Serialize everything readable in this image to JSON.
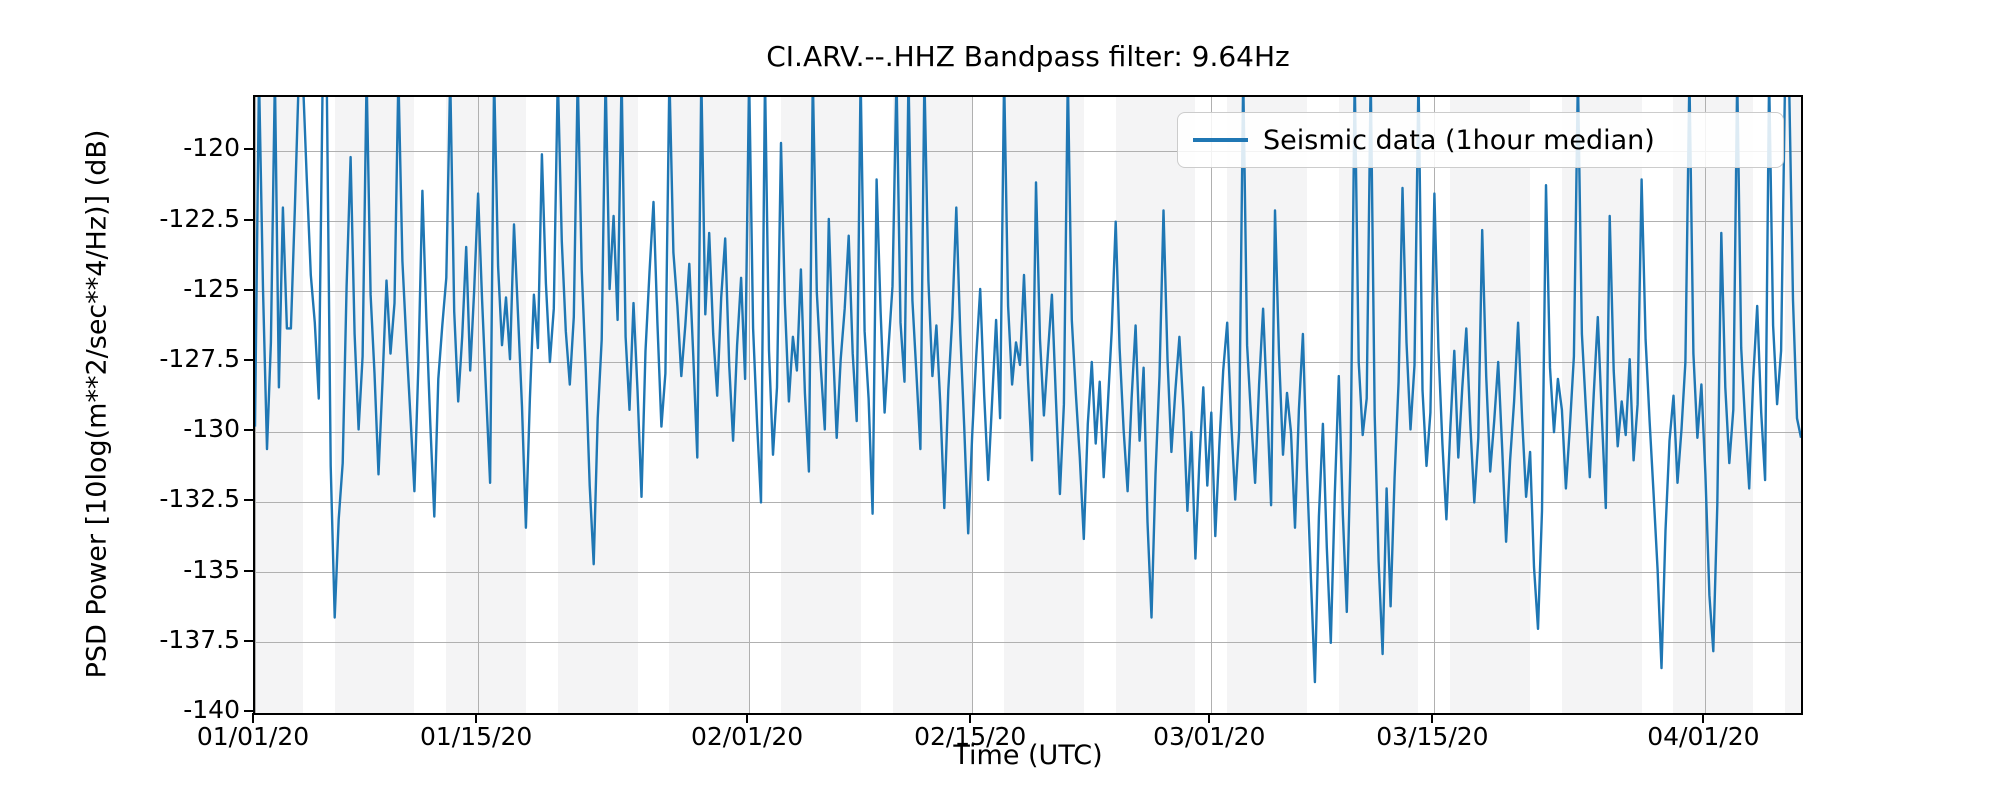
{
  "figure": {
    "title": "CI.ARV.--.HHZ Bandpass filter: 9.64Hz",
    "xlabel": "Time (UTC)",
    "ylabel": "PSD Power [10log(m**2/sec**4/Hz)] (dB)",
    "legend_label": "Seismic data (1hour median)"
  },
  "chart_data": {
    "type": "line",
    "title": "CI.ARV.--.HHZ Bandpass filter: 9.64Hz",
    "xlabel": "Time (UTC)",
    "ylabel": "PSD Power [10log(m**2/sec**4/Hz)] (dB)",
    "legend": [
      "Seismic data (1hour median)"
    ],
    "legend_position": "upper right",
    "grid": true,
    "line_color": "#1f77b4",
    "weekday_band_color": "#f4f4f5",
    "weekend_band_color": "#ffffff",
    "start_weekday_mon0": 2,
    "x_start_date": "01/01/20",
    "points_per_day": 4,
    "xlim_days": [
      0,
      97
    ],
    "ylim": [
      -140,
      -118.06
    ],
    "x_ticks": [
      {
        "label": "01/01/20",
        "day": 0
      },
      {
        "label": "01/15/20",
        "day": 14
      },
      {
        "label": "02/01/20",
        "day": 31
      },
      {
        "label": "02/15/20",
        "day": 45
      },
      {
        "label": "03/01/20",
        "day": 60
      },
      {
        "label": "03/15/20",
        "day": 74
      },
      {
        "label": "04/01/20",
        "day": 91
      }
    ],
    "y_ticks": [
      -120,
      -122.5,
      -125,
      -127.5,
      -130,
      -132.5,
      -135,
      -137.5,
      -140
    ],
    "values_db": [
      -129.8,
      -117.3,
      -124.9,
      -130.6,
      -126.8,
      -117.3,
      -128.4,
      -122.0,
      -126.3,
      -126.3,
      -122.1,
      -117.3,
      -117.3,
      -121.0,
      -124.4,
      -126.1,
      -128.8,
      -117.3,
      -117.3,
      -131.2,
      -136.6,
      -133.1,
      -131.1,
      -124.8,
      -120.2,
      -126.5,
      -129.9,
      -127.3,
      -117.3,
      -125.1,
      -127.9,
      -131.5,
      -128.2,
      -124.6,
      -127.2,
      -125.4,
      -117.3,
      -123.9,
      -126.8,
      -129.4,
      -132.1,
      -127.6,
      -121.4,
      -125.9,
      -129.7,
      -133.0,
      -128.1,
      -126.2,
      -124.5,
      -117.3,
      -125.7,
      -128.9,
      -126.6,
      -123.4,
      -127.8,
      -125.0,
      -121.5,
      -125.3,
      -128.6,
      -131.8,
      -117.3,
      -124.1,
      -126.9,
      -125.2,
      -127.4,
      -122.6,
      -125.8,
      -129.1,
      -133.4,
      -128.8,
      -125.1,
      -127.0,
      -120.1,
      -124.7,
      -127.5,
      -125.6,
      -117.3,
      -123.2,
      -126.4,
      -128.3,
      -125.9,
      -117.3,
      -124.2,
      -127.7,
      -131.9,
      -134.7,
      -129.5,
      -126.7,
      -117.3,
      -124.9,
      -122.3,
      -126.0,
      -117.3,
      -126.6,
      -129.2,
      -125.4,
      -128.5,
      -132.3,
      -127.1,
      -124.3,
      -121.8,
      -126.1,
      -129.8,
      -127.9,
      -117.3,
      -123.6,
      -125.5,
      -128.0,
      -126.2,
      -124.0,
      -127.3,
      -130.9,
      -117.3,
      -125.8,
      -122.9,
      -126.5,
      -128.7,
      -125.2,
      -123.1,
      -127.6,
      -130.3,
      -126.9,
      -124.5,
      -128.1,
      -117.3,
      -126.3,
      -129.7,
      -132.5,
      -117.3,
      -127.1,
      -130.8,
      -128.4,
      -119.7,
      -125.4,
      -128.9,
      -126.6,
      -127.8,
      -124.2,
      -128.6,
      -131.4,
      -117.3,
      -125.0,
      -127.7,
      -129.9,
      -122.4,
      -126.8,
      -130.2,
      -127.4,
      -125.6,
      -123.0,
      -127.2,
      -129.6,
      -117.3,
      -126.4,
      -128.8,
      -132.9,
      -121.0,
      -125.7,
      -129.3,
      -127.0,
      -124.8,
      -117.3,
      -126.1,
      -128.2,
      -117.3,
      -125.3,
      -127.9,
      -130.6,
      -117.3,
      -124.6,
      -128.0,
      -126.2,
      -129.0,
      -132.7,
      -128.5,
      -125.9,
      -122.0,
      -126.5,
      -129.8,
      -133.6,
      -130.1,
      -127.3,
      -124.9,
      -128.7,
      -131.7,
      -128.9,
      -126.0,
      -129.5,
      -117.3,
      -125.5,
      -128.3,
      -126.8,
      -127.6,
      -124.4,
      -128.1,
      -131.0,
      -121.1,
      -126.7,
      -129.4,
      -127.2,
      -125.1,
      -128.8,
      -132.2,
      -129.0,
      -117.3,
      -126.0,
      -128.6,
      -130.9,
      -133.8,
      -129.7,
      -127.5,
      -130.4,
      -128.2,
      -131.6,
      -129.1,
      -126.4,
      -122.5,
      -127.0,
      -129.9,
      -132.1,
      -128.8,
      -126.2,
      -130.3,
      -127.7,
      -133.2,
      -136.6,
      -131.5,
      -128.0,
      -122.1,
      -127.4,
      -130.7,
      -128.5,
      -126.6,
      -129.2,
      -132.8,
      -130.0,
      -134.5,
      -131.1,
      -128.4,
      -131.9,
      -129.3,
      -133.7,
      -130.5,
      -127.8,
      -126.1,
      -129.6,
      -132.4,
      -129.9,
      -117.3,
      -126.9,
      -129.5,
      -131.8,
      -128.3,
      -125.6,
      -129.0,
      -132.6,
      -122.1,
      -127.2,
      -130.8,
      -128.6,
      -130.0,
      -133.4,
      -129.2,
      -126.5,
      -131.3,
      -135.2,
      -138.9,
      -133.0,
      -129.7,
      -134.1,
      -137.5,
      -132.2,
      -128.0,
      -132.9,
      -136.4,
      -130.6,
      -117.3,
      -127.5,
      -130.1,
      -128.8,
      -117.3,
      -129.4,
      -134.6,
      -137.9,
      -132.0,
      -136.2,
      -131.6,
      -128.2,
      -121.3,
      -126.8,
      -129.9,
      -127.6,
      -117.3,
      -128.5,
      -131.2,
      -129.3,
      -121.5,
      -127.0,
      -130.4,
      -133.1,
      -129.8,
      -127.1,
      -130.9,
      -128.4,
      -126.3,
      -129.7,
      -132.5,
      -130.2,
      -122.8,
      -128.0,
      -131.4,
      -129.6,
      -127.5,
      -130.6,
      -133.9,
      -131.0,
      -128.9,
      -126.1,
      -129.5,
      -132.3,
      -130.7,
      -134.8,
      -137.0,
      -132.8,
      -121.2,
      -127.7,
      -130.0,
      -128.1,
      -129.2,
      -132.0,
      -129.8,
      -127.3,
      -117.3,
      -126.5,
      -129.1,
      -131.6,
      -128.6,
      -125.9,
      -129.4,
      -132.7,
      -122.3,
      -127.8,
      -130.5,
      -128.9,
      -130.1,
      -127.4,
      -131.0,
      -129.0,
      -121.0,
      -126.7,
      -129.6,
      -132.2,
      -134.9,
      -138.4,
      -133.5,
      -130.3,
      -128.7,
      -131.8,
      -129.9,
      -127.5,
      -117.3,
      -127.2,
      -130.2,
      -128.3,
      -131.5,
      -135.8,
      -137.8,
      -132.6,
      -122.9,
      -128.4,
      -131.1,
      -129.2,
      -117.3,
      -127.0,
      -129.7,
      -132.0,
      -128.1,
      -125.5,
      -129.3,
      -131.7,
      -117.3,
      -126.2,
      -129.0,
      -127.1,
      -117.3,
      -117.3,
      -125.3,
      -129.5,
      -130.2
    ]
  }
}
